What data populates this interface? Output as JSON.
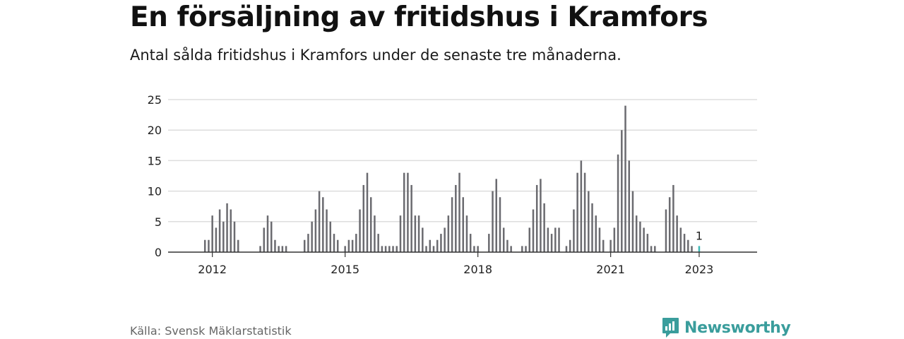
{
  "title": "En försäljning av fritidshus i Kramfors",
  "subtitle": "Antal sålda fritidshus i Kramfors under de senaste tre månaderna.",
  "source": "Källa: Svensk Mäklarstatistik",
  "brand": {
    "name": "Newsworthy",
    "icon": "newsworthy-logo-icon",
    "color": "#3a9d9c"
  },
  "colors": {
    "bar": "#6b6b70",
    "highlight": "#3fb8b6",
    "grid": "#dddddd",
    "axis": "#333333"
  },
  "chart_data": {
    "type": "bar",
    "title": "",
    "xlabel": "",
    "ylabel": "",
    "ylim": [
      0,
      25
    ],
    "y_ticks": [
      0,
      5,
      10,
      15,
      20,
      25
    ],
    "x_tick_labels": [
      {
        "label": "2012",
        "x": "2012-01"
      },
      {
        "label": "2015",
        "x": "2015-01"
      },
      {
        "label": "2018",
        "x": "2018-01"
      },
      {
        "label": "2021",
        "x": "2021-01"
      },
      {
        "label": "2023",
        "x": "2023-01"
      }
    ],
    "grid": true,
    "highlight_label": "1",
    "series": [
      {
        "x": [
          "2011-01",
          "2011-02",
          "2011-03",
          "2011-04",
          "2011-05",
          "2011-06",
          "2011-07",
          "2011-08",
          "2011-09",
          "2011-10",
          "2011-11",
          "2011-12",
          "2012-01",
          "2012-02",
          "2012-03",
          "2012-04",
          "2012-05",
          "2012-06",
          "2012-07",
          "2012-08",
          "2012-09",
          "2012-10",
          "2012-11",
          "2012-12",
          "2013-01",
          "2013-02",
          "2013-03",
          "2013-04",
          "2013-05",
          "2013-06",
          "2013-07",
          "2013-08",
          "2013-09",
          "2013-10",
          "2013-11",
          "2013-12",
          "2014-01",
          "2014-02",
          "2014-03",
          "2014-04",
          "2014-05",
          "2014-06",
          "2014-07",
          "2014-08",
          "2014-09",
          "2014-10",
          "2014-11",
          "2014-12",
          "2015-01",
          "2015-02",
          "2015-03",
          "2015-04",
          "2015-05",
          "2015-06",
          "2015-07",
          "2015-08",
          "2015-09",
          "2015-10",
          "2015-11",
          "2015-12",
          "2016-01",
          "2016-02",
          "2016-03",
          "2016-04",
          "2016-05",
          "2016-06",
          "2016-07",
          "2016-08",
          "2016-09",
          "2016-10",
          "2016-11",
          "2016-12",
          "2017-01",
          "2017-02",
          "2017-03",
          "2017-04",
          "2017-05",
          "2017-06",
          "2017-07",
          "2017-08",
          "2017-09",
          "2017-10",
          "2017-11",
          "2017-12",
          "2018-01",
          "2018-02",
          "2018-03",
          "2018-04",
          "2018-05",
          "2018-06",
          "2018-07",
          "2018-08",
          "2018-09",
          "2018-10",
          "2018-11",
          "2018-12",
          "2019-01",
          "2019-02",
          "2019-03",
          "2019-04",
          "2019-05",
          "2019-06",
          "2019-07",
          "2019-08",
          "2019-09",
          "2019-10",
          "2019-11",
          "2019-12",
          "2020-01",
          "2020-02",
          "2020-03",
          "2020-04",
          "2020-05",
          "2020-06",
          "2020-07",
          "2020-08",
          "2020-09",
          "2020-10",
          "2020-11",
          "2020-12",
          "2021-01",
          "2021-02",
          "2021-03",
          "2021-04",
          "2021-05",
          "2021-06",
          "2021-07",
          "2021-08",
          "2021-09",
          "2021-10",
          "2021-11",
          "2021-12",
          "2022-01",
          "2022-02",
          "2022-03",
          "2022-04",
          "2022-05",
          "2022-06",
          "2022-07",
          "2022-08",
          "2022-09",
          "2022-10",
          "2022-11",
          "2022-12",
          "2023-01"
        ],
        "values": [
          0,
          0,
          0,
          0,
          0,
          0,
          0,
          0,
          0,
          0,
          2,
          2,
          6,
          4,
          7,
          5,
          8,
          7,
          5,
          2,
          0,
          0,
          0,
          0,
          0,
          1,
          4,
          6,
          5,
          2,
          1,
          1,
          1,
          0,
          0,
          0,
          0,
          2,
          3,
          5,
          7,
          10,
          9,
          7,
          5,
          3,
          2,
          0,
          1,
          2,
          2,
          3,
          7,
          11,
          13,
          9,
          6,
          3,
          1,
          1,
          1,
          1,
          1,
          6,
          13,
          13,
          11,
          6,
          6,
          4,
          1,
          2,
          1,
          2,
          3,
          4,
          6,
          9,
          11,
          13,
          9,
          6,
          3,
          1,
          1,
          0,
          0,
          3,
          10,
          12,
          9,
          4,
          2,
          1,
          0,
          0,
          1,
          1,
          4,
          7,
          11,
          12,
          8,
          4,
          3,
          4,
          4,
          0,
          1,
          2,
          7,
          13,
          15,
          13,
          10,
          8,
          6,
          4,
          2,
          0,
          2,
          4,
          16,
          20,
          24,
          15,
          10,
          6,
          5,
          4,
          3,
          1,
          1,
          0,
          0,
          7,
          9,
          11,
          6,
          4,
          3,
          2,
          1,
          0,
          1
        ]
      }
    ]
  }
}
